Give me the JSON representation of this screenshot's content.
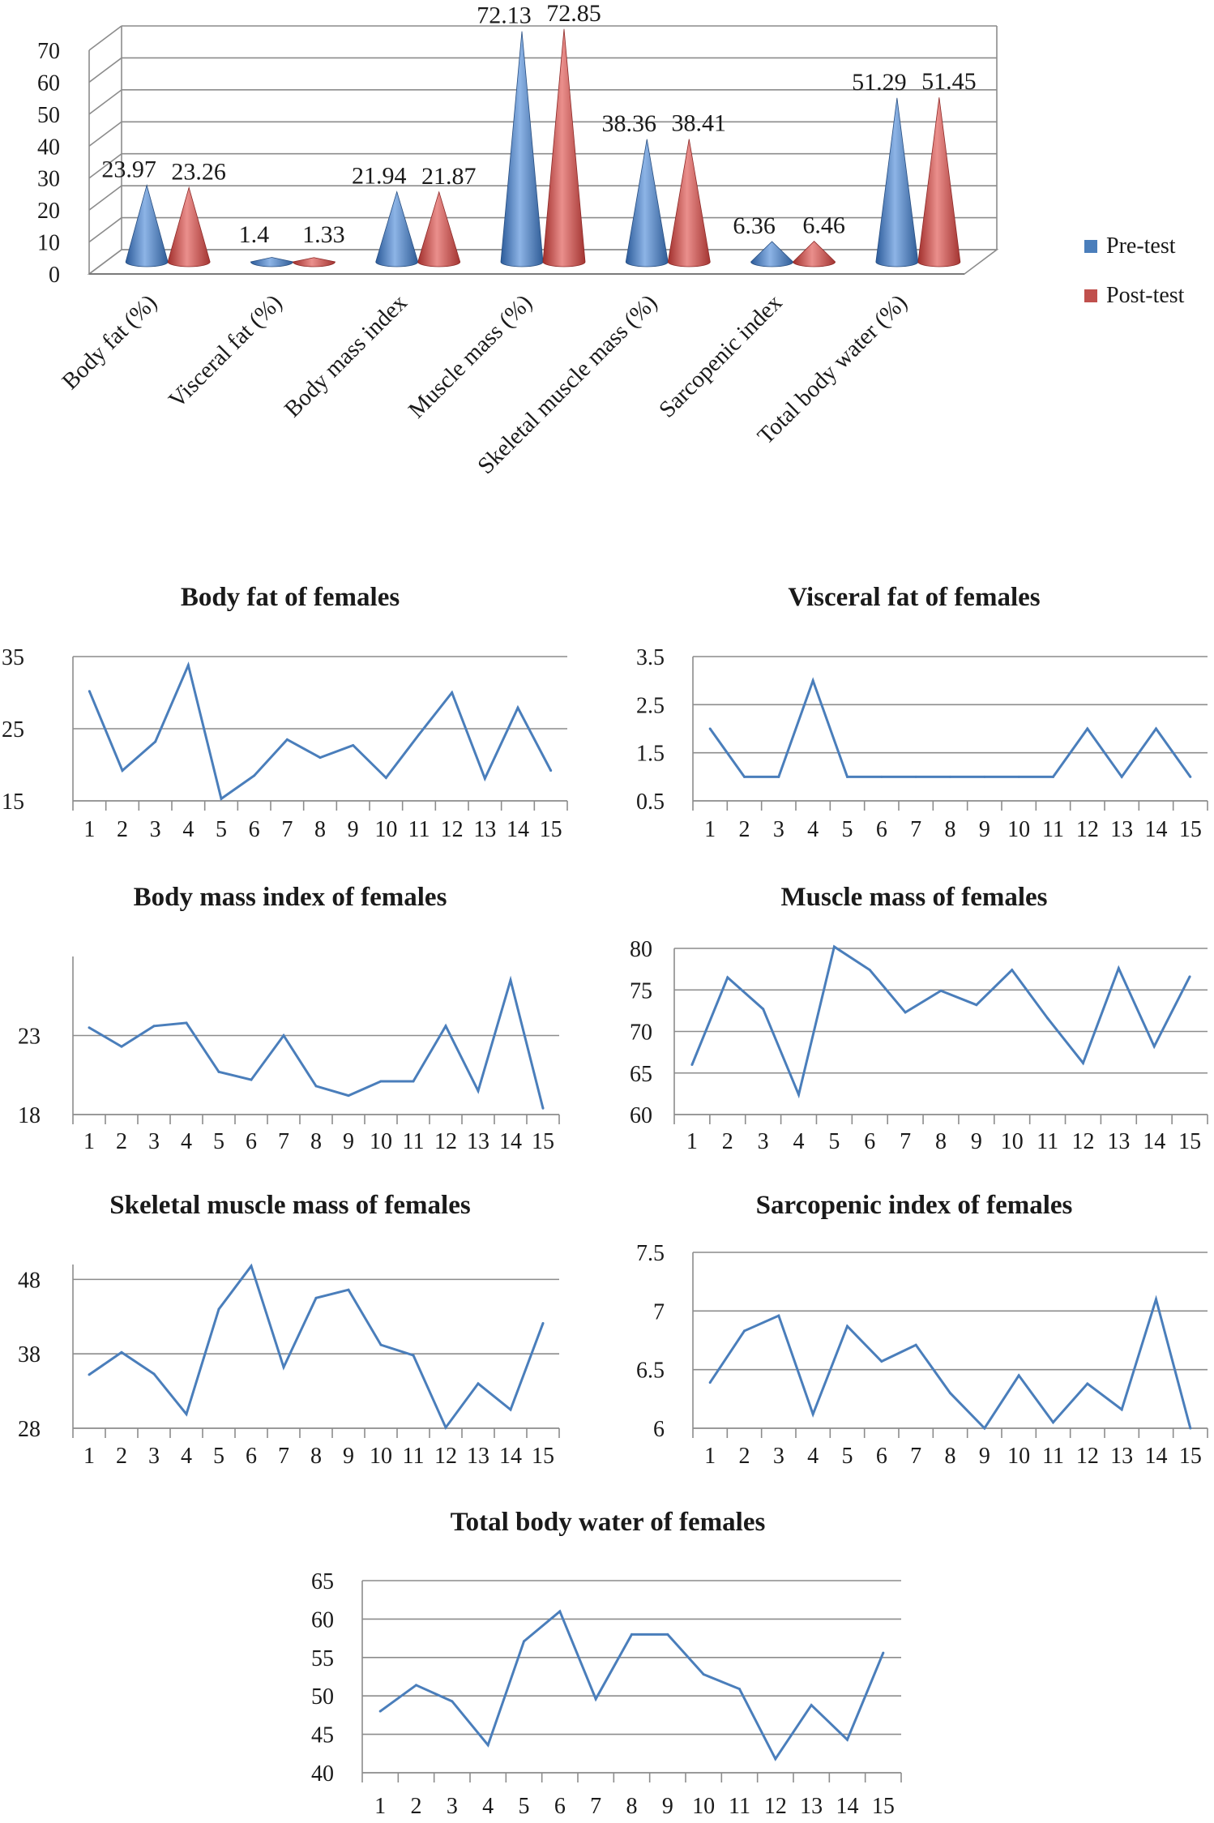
{
  "figure": {
    "bar3d": {
      "type": "bar",
      "style": "3d-cone",
      "categories": [
        "Body fat (%)",
        "Visceral fat (%)",
        "Body mass index",
        "Muscle mass (%)",
        "Skeletal muscle mass (%)",
        "Sarcopenic index",
        "Total body water (%)"
      ],
      "series": [
        {
          "name": "Pre-test",
          "color": "#4a7ebb",
          "values": [
            23.97,
            1.4,
            21.94,
            72.13,
            38.36,
            6.36,
            51.29
          ],
          "labels": [
            "23.97",
            "1.4",
            "21.94",
            "72.13",
            "38.36",
            "6.36",
            "51.29"
          ]
        },
        {
          "name": "Post-test",
          "color": "#c0504d",
          "values": [
            23.26,
            1.33,
            21.87,
            72.85,
            38.41,
            6.46,
            51.45
          ],
          "labels": [
            "23.26",
            "1.33",
            "21.87",
            "72.85",
            "38.41",
            "6.46",
            "51.45"
          ]
        }
      ],
      "ylim": [
        0,
        70
      ],
      "yticks": [
        "0",
        "10",
        "20",
        "30",
        "40",
        "50",
        "60",
        "70"
      ],
      "legend_position": "right"
    },
    "line_charts": [
      {
        "type": "line",
        "title": "Body fat of females",
        "x": [
          "1",
          "2",
          "3",
          "4",
          "5",
          "6",
          "7",
          "8",
          "9",
          "10",
          "11",
          "12",
          "13",
          "14",
          "15"
        ],
        "values": [
          30.2,
          19.2,
          23.2,
          33.8,
          15.3,
          18.5,
          23.5,
          21.0,
          22.7,
          18.2,
          24.2,
          30.0,
          18.1,
          27.9,
          19.2
        ],
        "ylim": [
          15,
          35
        ],
        "yticks": [
          {
            "v": 15,
            "label": "15"
          },
          {
            "v": 25,
            "label": "25"
          },
          {
            "v": 35,
            "label": "35"
          }
        ],
        "color": "#4a7ebb"
      },
      {
        "type": "line",
        "title": "Visceral fat of females",
        "x": [
          "1",
          "2",
          "3",
          "4",
          "5",
          "6",
          "7",
          "8",
          "9",
          "10",
          "11",
          "12",
          "13",
          "14",
          "15"
        ],
        "values": [
          2,
          1,
          1,
          3,
          1,
          1,
          1,
          1,
          1,
          1,
          1,
          2,
          1,
          2,
          1
        ],
        "ylim": [
          0.5,
          3.5
        ],
        "yticks": [
          {
            "v": 0.5,
            "label": "0.5"
          },
          {
            "v": 1.5,
            "label": "1.5"
          },
          {
            "v": 2.5,
            "label": "2.5"
          },
          {
            "v": 3.5,
            "label": "3.5"
          }
        ],
        "color": "#4a7ebb"
      },
      {
        "type": "line",
        "title": "Body mass index of females",
        "x": [
          "1",
          "2",
          "3",
          "4",
          "5",
          "6",
          "7",
          "8",
          "9",
          "10",
          "11",
          "12",
          "13",
          "14",
          "15"
        ],
        "values": [
          23.5,
          22.3,
          23.6,
          23.8,
          20.7,
          20.2,
          23.0,
          19.8,
          19.2,
          20.1,
          20.1,
          23.6,
          19.5,
          26.5,
          18.4
        ],
        "ylim": [
          18,
          28
        ],
        "yticks": [
          {
            "v": 18,
            "label": "18"
          },
          {
            "v": 23,
            "label": "23"
          }
        ],
        "color": "#4a7ebb"
      },
      {
        "type": "line",
        "title": "Muscle mass of females",
        "x": [
          "1",
          "2",
          "3",
          "4",
          "5",
          "6",
          "7",
          "8",
          "9",
          "10",
          "11",
          "12",
          "13",
          "14",
          "15"
        ],
        "values": [
          66.0,
          76.5,
          72.7,
          62.4,
          80.2,
          77.4,
          72.3,
          74.9,
          73.2,
          77.4,
          71.6,
          66.2,
          77.6,
          68.2,
          76.6
        ],
        "ylim": [
          60,
          80
        ],
        "yticks": [
          {
            "v": 60,
            "label": "60"
          },
          {
            "v": 65,
            "label": "65"
          },
          {
            "v": 70,
            "label": "70"
          },
          {
            "v": 75,
            "label": "75"
          },
          {
            "v": 80,
            "label": "80"
          }
        ],
        "color": "#4a7ebb"
      },
      {
        "type": "line",
        "title": "Skeletal muscle mass of females",
        "x": [
          "1",
          "2",
          "3",
          "4",
          "5",
          "6",
          "7",
          "8",
          "9",
          "10",
          "11",
          "12",
          "13",
          "14",
          "15"
        ],
        "values": [
          35.2,
          38.2,
          35.3,
          29.9,
          44.0,
          49.8,
          36.2,
          45.5,
          46.6,
          39.2,
          37.8,
          28.1,
          34.0,
          30.5,
          42.1
        ],
        "ylim": [
          28,
          50
        ],
        "yticks": [
          {
            "v": 28,
            "label": "28"
          },
          {
            "v": 38,
            "label": "38"
          },
          {
            "v": 48,
            "label": "48"
          }
        ],
        "color": "#4a7ebb"
      },
      {
        "type": "line",
        "title": "Sarcopenic index of females",
        "x": [
          "1",
          "2",
          "3",
          "4",
          "5",
          "6",
          "7",
          "8",
          "9",
          "10",
          "11",
          "12",
          "13",
          "14",
          "15"
        ],
        "values": [
          6.39,
          6.83,
          6.96,
          6.12,
          6.87,
          6.57,
          6.71,
          6.3,
          6.0,
          6.45,
          6.05,
          6.38,
          6.16,
          7.1,
          6.0
        ],
        "ylim": [
          6,
          7.5
        ],
        "yticks": [
          {
            "v": 6,
            "label": "6"
          },
          {
            "v": 6.5,
            "label": "6.5"
          },
          {
            "v": 7,
            "label": "7"
          },
          {
            "v": 7.5,
            "label": "7.5"
          }
        ],
        "color": "#4a7ebb"
      },
      {
        "type": "line",
        "title": "Total body water of females",
        "x": [
          "1",
          "2",
          "3",
          "4",
          "5",
          "6",
          "7",
          "8",
          "9",
          "10",
          "11",
          "12",
          "13",
          "14",
          "15"
        ],
        "values": [
          48.0,
          51.4,
          49.3,
          43.6,
          57.1,
          61.0,
          49.6,
          58.0,
          58.0,
          52.8,
          50.9,
          41.8,
          48.8,
          44.3,
          55.6
        ],
        "ylim": [
          40,
          65
        ],
        "yticks": [
          {
            "v": 40,
            "label": "40"
          },
          {
            "v": 45,
            "label": "45"
          },
          {
            "v": 50,
            "label": "50"
          },
          {
            "v": 55,
            "label": "55"
          },
          {
            "v": 60,
            "label": "60"
          },
          {
            "v": 65,
            "label": "65"
          }
        ],
        "color": "#4a7ebb"
      }
    ]
  }
}
